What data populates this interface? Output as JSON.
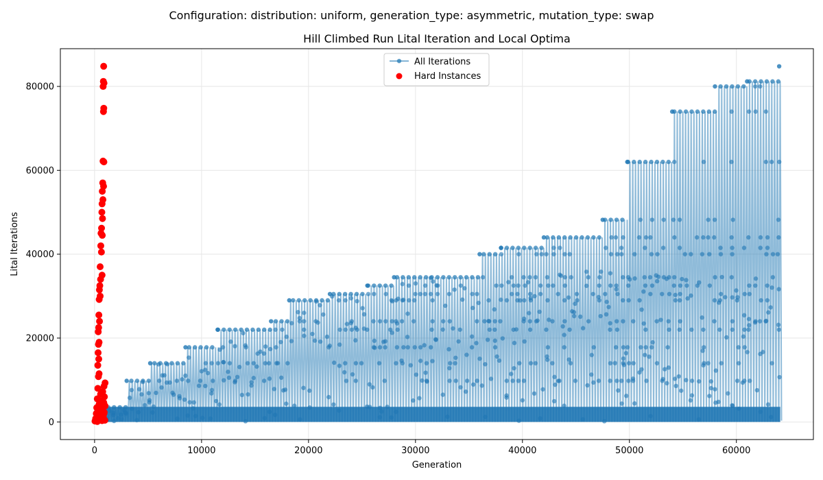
{
  "figure": {
    "suptitle": "Configuration: distribution: uniform, generation_type: asymmetric, mutation_type: swap"
  },
  "chart_data": {
    "type": "scatter",
    "title": "Hill Climbed Run Lital Iteration and Local Optima",
    "xlabel": "Generation",
    "ylabel": "Lital Iterations",
    "xlim": [
      -3200,
      67200
    ],
    "ylim": [
      -4200,
      89000
    ],
    "xticks": [
      0,
      10000,
      20000,
      30000,
      40000,
      50000,
      60000
    ],
    "yticks": [
      0,
      20000,
      40000,
      60000,
      80000
    ],
    "grid": true,
    "legend_position": "top-center",
    "series": [
      {
        "name": "All Iterations",
        "color": "#1f77b4",
        "marker": "circle-line",
        "description_points": "staircase of local optima vs generation",
        "optima_steps": [
          {
            "x": 3000,
            "y": 9800
          },
          {
            "x": 5200,
            "y": 14000
          },
          {
            "x": 8500,
            "y": 17800
          },
          {
            "x": 11500,
            "y": 22000
          },
          {
            "x": 16500,
            "y": 24000
          },
          {
            "x": 18200,
            "y": 29000
          },
          {
            "x": 22000,
            "y": 30500
          },
          {
            "x": 25500,
            "y": 32500
          },
          {
            "x": 28000,
            "y": 34500
          },
          {
            "x": 36000,
            "y": 40000
          },
          {
            "x": 38000,
            "y": 41500
          },
          {
            "x": 42000,
            "y": 44000
          },
          {
            "x": 47500,
            "y": 48200
          },
          {
            "x": 49800,
            "y": 62000
          },
          {
            "x": 54000,
            "y": 74000
          },
          {
            "x": 58000,
            "y": 80000
          },
          {
            "x": 61000,
            "y": 81200
          },
          {
            "x": 64000,
            "y": 84800
          }
        ],
        "end_x": 64100
      },
      {
        "name": "Hard Instances",
        "color": "#ff0000",
        "marker": "circle",
        "points": [
          {
            "x": 850,
            "y": 84800
          },
          {
            "x": 820,
            "y": 81200
          },
          {
            "x": 880,
            "y": 80800
          },
          {
            "x": 800,
            "y": 80000
          },
          {
            "x": 860,
            "y": 74800
          },
          {
            "x": 830,
            "y": 74000
          },
          {
            "x": 790,
            "y": 62200
          },
          {
            "x": 870,
            "y": 62000
          },
          {
            "x": 760,
            "y": 57000
          },
          {
            "x": 840,
            "y": 56200
          },
          {
            "x": 720,
            "y": 55000
          },
          {
            "x": 780,
            "y": 53000
          },
          {
            "x": 700,
            "y": 52000
          },
          {
            "x": 680,
            "y": 50000
          },
          {
            "x": 740,
            "y": 48500
          },
          {
            "x": 650,
            "y": 46200
          },
          {
            "x": 600,
            "y": 45000
          },
          {
            "x": 720,
            "y": 44500
          },
          {
            "x": 580,
            "y": 42000
          },
          {
            "x": 640,
            "y": 40500
          },
          {
            "x": 520,
            "y": 37000
          },
          {
            "x": 700,
            "y": 35000
          },
          {
            "x": 560,
            "y": 34000
          },
          {
            "x": 490,
            "y": 32500
          },
          {
            "x": 450,
            "y": 31500
          },
          {
            "x": 520,
            "y": 30000
          },
          {
            "x": 430,
            "y": 29200
          },
          {
            "x": 400,
            "y": 25500
          },
          {
            "x": 460,
            "y": 24000
          },
          {
            "x": 380,
            "y": 22500
          },
          {
            "x": 340,
            "y": 21500
          },
          {
            "x": 420,
            "y": 19000
          },
          {
            "x": 360,
            "y": 18500
          },
          {
            "x": 330,
            "y": 16500
          },
          {
            "x": 390,
            "y": 15000
          },
          {
            "x": 300,
            "y": 13500
          },
          {
            "x": 420,
            "y": 11500
          },
          {
            "x": 360,
            "y": 10800
          },
          {
            "x": 980,
            "y": 9300
          },
          {
            "x": 880,
            "y": 8500
          },
          {
            "x": 300,
            "y": 8000
          },
          {
            "x": 760,
            "y": 7200
          },
          {
            "x": 560,
            "y": 6600
          },
          {
            "x": 920,
            "y": 6000
          },
          {
            "x": 250,
            "y": 5500
          },
          {
            "x": 640,
            "y": 5000
          },
          {
            "x": 860,
            "y": 4600
          },
          {
            "x": 420,
            "y": 4200
          },
          {
            "x": 980,
            "y": 3800
          },
          {
            "x": 200,
            "y": 3400
          },
          {
            "x": 720,
            "y": 3000
          },
          {
            "x": 520,
            "y": 2700
          },
          {
            "x": 900,
            "y": 2300
          },
          {
            "x": 160,
            "y": 2000
          },
          {
            "x": 620,
            "y": 1700
          },
          {
            "x": 360,
            "y": 1400
          },
          {
            "x": 820,
            "y": 1100
          },
          {
            "x": 100,
            "y": 800
          },
          {
            "x": 460,
            "y": 600
          },
          {
            "x": 960,
            "y": 400
          },
          {
            "x": 40,
            "y": 200
          },
          {
            "x": 260,
            "y": 100
          },
          {
            "x": 700,
            "y": 300
          },
          {
            "x": 540,
            "y": 1200
          },
          {
            "x": 880,
            "y": 2000
          },
          {
            "x": 300,
            "y": 2600
          }
        ]
      }
    ]
  }
}
